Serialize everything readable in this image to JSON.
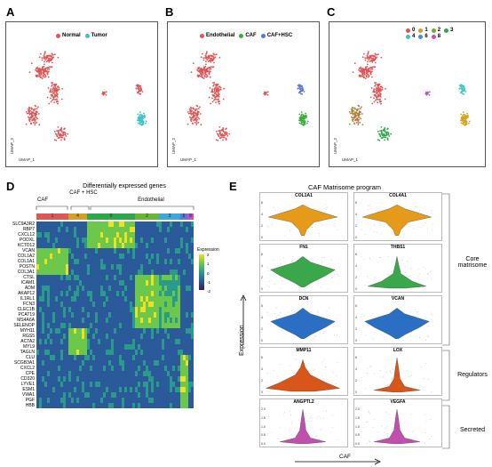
{
  "panels": {
    "A": {
      "letter": "A",
      "legend": [
        {
          "label": "Normal",
          "color": "#e05555"
        },
        {
          "label": "Tumor",
          "color": "#3cc4c4"
        }
      ],
      "xlabel": "UMAP_1",
      "ylabel": "UMAP_2"
    },
    "B": {
      "letter": "B",
      "legend": [
        {
          "label": "Endothelial",
          "color": "#e05555"
        },
        {
          "label": "CAF",
          "color": "#3aad3a"
        },
        {
          "label": "CAF+HSC",
          "color": "#5a78d8"
        }
      ],
      "xlabel": "UMAP_1",
      "ylabel": "UMAP_2"
    },
    "C": {
      "letter": "C",
      "legend": [
        {
          "label": "0",
          "color": "#e05555"
        },
        {
          "label": "1",
          "color": "#d4a020"
        },
        {
          "label": "2",
          "color": "#7aa820"
        },
        {
          "label": "3",
          "color": "#2aa84a"
        },
        {
          "label": "4",
          "color": "#3cc4c4"
        },
        {
          "label": "6",
          "color": "#4a8ae0"
        },
        {
          "label": "8",
          "color": "#c050c8"
        }
      ],
      "xlabel": "UMAP_1",
      "ylabel": "UMAP_2",
      "cluster_labels": [
        "0",
        "1",
        "2",
        "3",
        "4",
        "6",
        "8"
      ]
    },
    "D": {
      "letter": "D",
      "title": "Differentially expressed genes",
      "groups": [
        {
          "name": "CAF",
          "clusters": [
            "1"
          ],
          "color": "#d4a020"
        },
        {
          "name": "CAF + HSC",
          "clusters": [
            "4"
          ],
          "color": "#3cc4c4"
        },
        {
          "name": "Endothelial",
          "clusters": [
            "0",
            "2",
            "3",
            "6",
            "8"
          ],
          "color": "#e05555"
        }
      ],
      "cluster_bar": [
        {
          "label": "1",
          "color": "#e05555"
        },
        {
          "label": "4",
          "color": "#d4a020"
        },
        {
          "label": "0",
          "color": "#2aa84a"
        },
        {
          "label": "2",
          "color": "#6ab830"
        },
        {
          "label": "3",
          "color": "#3aa8d8"
        },
        {
          "label": "6",
          "color": "#5a78d8"
        },
        {
          "label": "8",
          "color": "#c050c8"
        }
      ],
      "genes": [
        "SLC9A3R2",
        "RBP7",
        "CXCL12",
        "PODXL",
        "KCTD12",
        "VCAN",
        "COL1A2",
        "COL1A1",
        "POSTN",
        "COL3A1",
        "CTSL",
        "ICAM1",
        "ADM",
        "AKAP12",
        "IL1RL1",
        "FCN3",
        "CLEC1B",
        "PCAT19",
        "MS4A6A",
        "SELENOP",
        "MYH11",
        "RGS5",
        "ACTA2",
        "MYL9",
        "TAGLN",
        "CLU",
        "SCGB3A1",
        "CXCL2",
        "CPE",
        "CD320",
        "LYVE1",
        "ESM1",
        "VWA1",
        "PGF",
        "HBB"
      ],
      "legend_title": "Expression",
      "legend_ticks": [
        "2",
        "1",
        "0",
        "-1",
        "-2"
      ]
    },
    "E": {
      "letter": "E",
      "title": "CAF Matrisome program",
      "ylabel": "Expression",
      "xlabel": "CAF",
      "violins": [
        {
          "gene": "COL1A1",
          "color": "#e59a1a"
        },
        {
          "gene": "COL4A1",
          "color": "#e59a1a"
        },
        {
          "gene": "FN1",
          "color": "#3aa84a"
        },
        {
          "gene": "THBS1",
          "color": "#3aa84a"
        },
        {
          "gene": "DCN",
          "color": "#2b6fc4"
        },
        {
          "gene": "VCAN",
          "color": "#2b6fc4"
        },
        {
          "gene": "MMP11",
          "color": "#d8561a"
        },
        {
          "gene": "LOX",
          "color": "#d8561a"
        },
        {
          "gene": "ANGPTL2",
          "color": "#c050b0"
        },
        {
          "gene": "VEGFA",
          "color": "#c050b0"
        }
      ],
      "categories": [
        "Core matrisome",
        "Regulators",
        "Secreted"
      ],
      "yticks_top": [
        "6",
        "4",
        "2",
        "0"
      ],
      "yticks_secreted": [
        "2.0",
        "1.5",
        "1.0",
        "0.5",
        "0.0"
      ]
    }
  }
}
